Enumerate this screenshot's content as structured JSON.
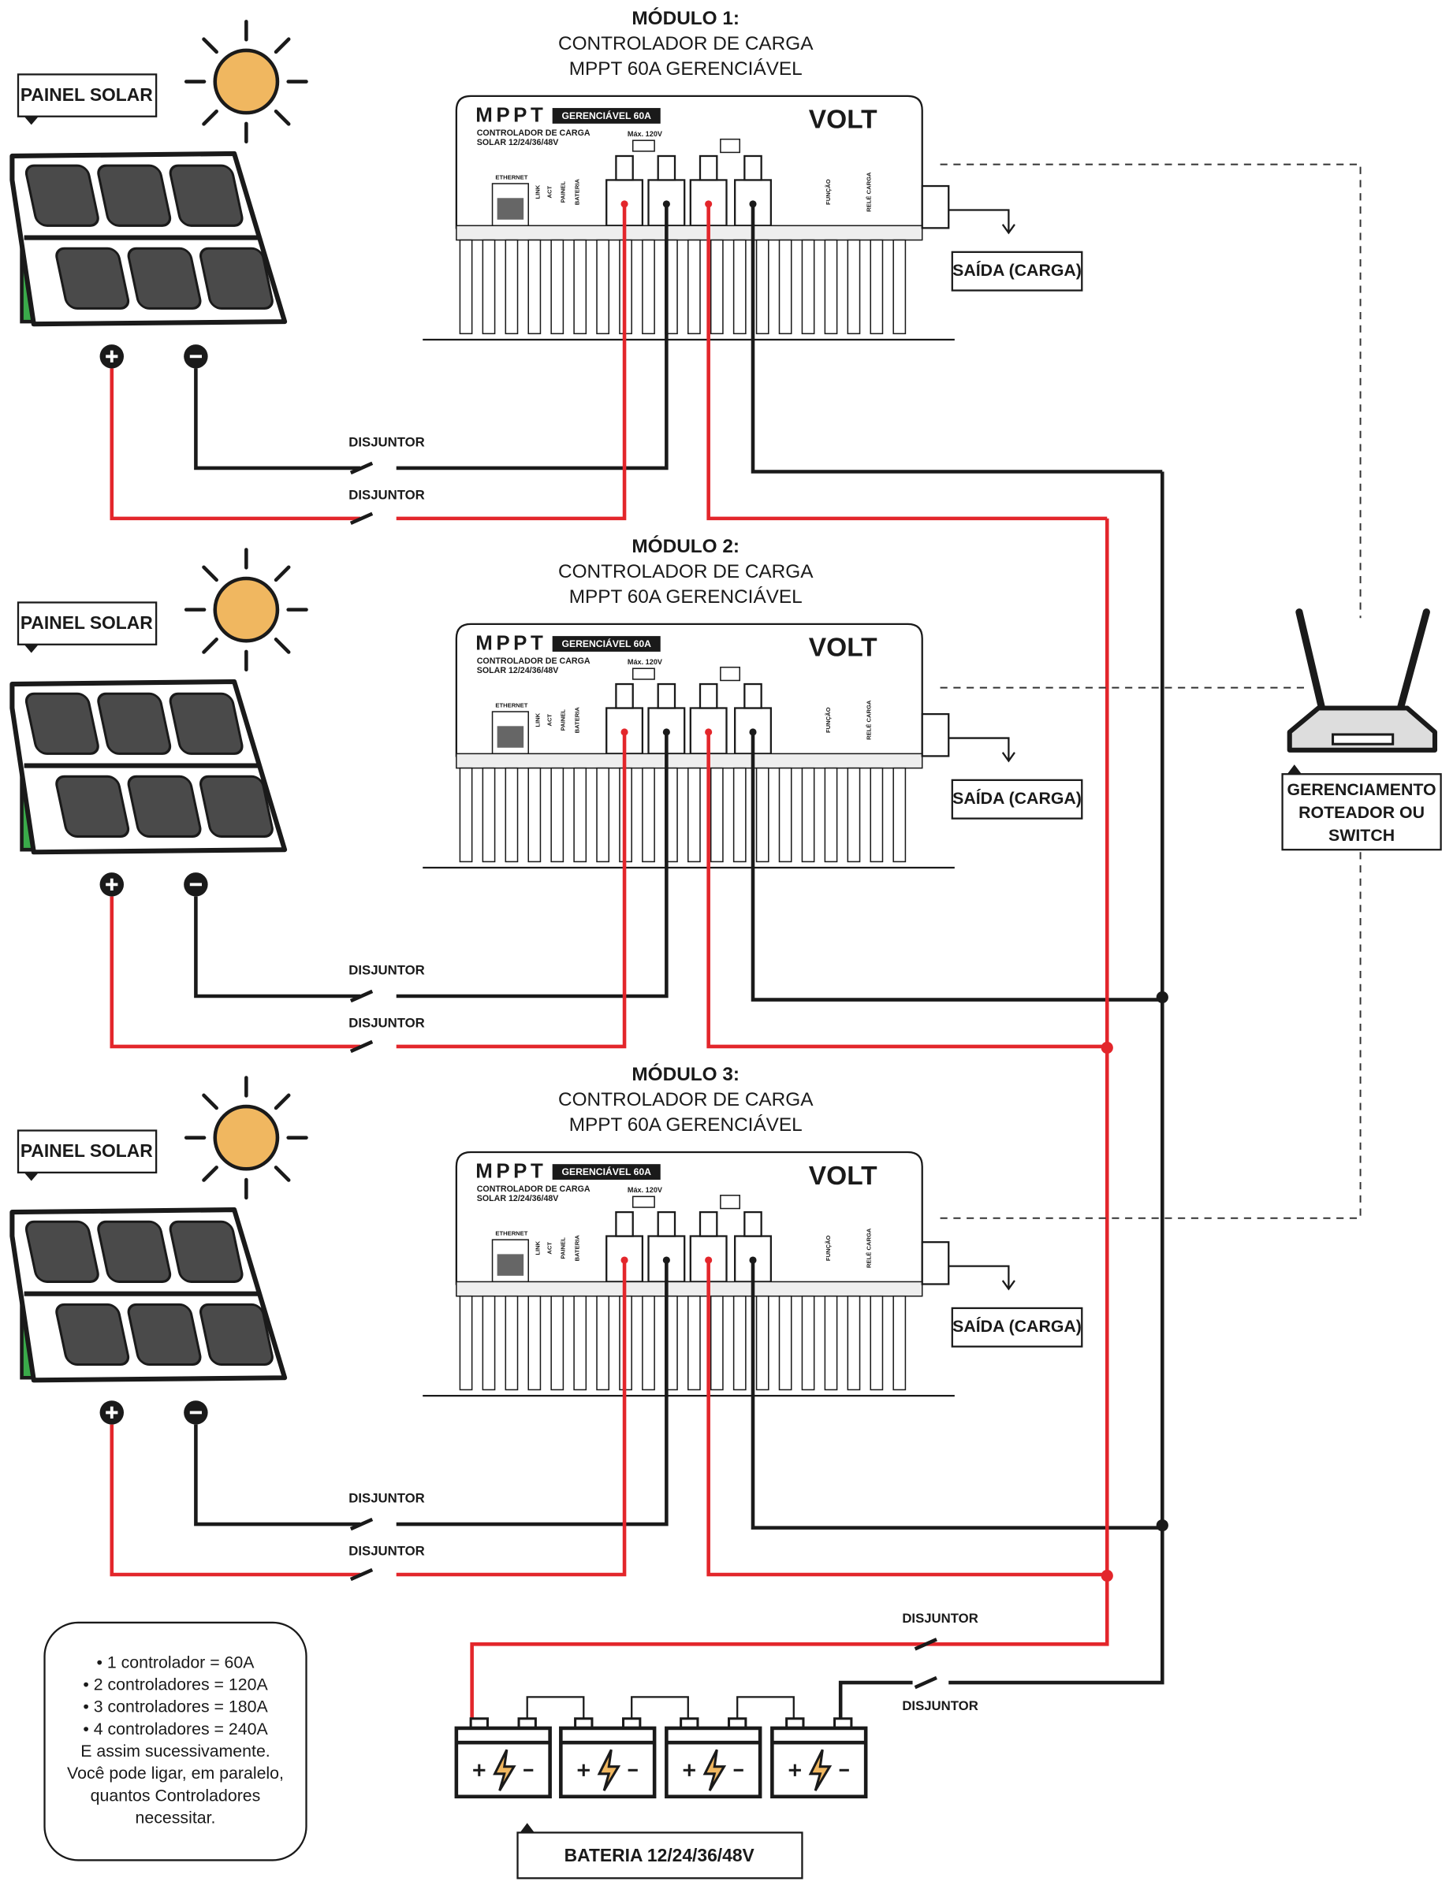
{
  "modules": [
    {
      "title": "MÓDULO 1:",
      "line1": "CONTROLADOR DE CARGA",
      "line2": "MPPT 60A GERENCIÁVEL"
    },
    {
      "title": "MÓDULO 2:",
      "line1": "CONTROLADOR DE CARGA",
      "line2": "MPPT 60A GERENCIÁVEL"
    },
    {
      "title": "MÓDULO 3:",
      "line1": "CONTROLADOR DE CARGA",
      "line2": "MPPT 60A GERENCIÁVEL"
    }
  ],
  "controller": {
    "model": "MPPT",
    "badge": "GERENCIÁVEL 60A",
    "desc1": "CONTROLADOR DE CARGA",
    "desc2": "SOLAR 12/24/36/48V",
    "brand": "VOLT",
    "max": "Máx. 120V",
    "ports": [
      "ETHERNET",
      "LINK",
      "ACT",
      "PAINEL",
      "BATERIA",
      "FUNÇÃO",
      "RELÉ CARGA"
    ]
  },
  "panel_label": "PAINEL SOLAR",
  "output_label": "SAÍDA (CARGA)",
  "breaker_label": "DISJUNTOR",
  "router": {
    "lines": [
      "GERENCIAMENTO",
      "ROTEADOR OU",
      "SWITCH"
    ]
  },
  "battery": {
    "label": "BATERIA 12/24/36/48V"
  },
  "note": {
    "lines": [
      "• 1 controlador = 60A",
      "• 2 controladores = 120A",
      "• 3 controladores = 180A",
      "• 4 controladores = 240A",
      "E assim sucessivamente.",
      "Você pode ligar, em paralelo,",
      "quantos Controladores",
      "necessitar."
    ]
  }
}
